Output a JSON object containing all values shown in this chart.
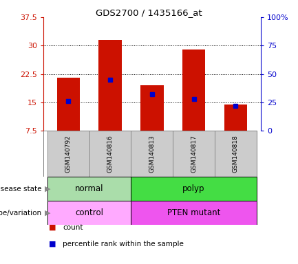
{
  "title": "GDS2700 / 1435166_at",
  "samples": [
    "GSM140792",
    "GSM140816",
    "GSM140813",
    "GSM140817",
    "GSM140818"
  ],
  "count_values": [
    21.5,
    31.5,
    19.5,
    29.0,
    14.5
  ],
  "percentile_values": [
    26,
    45,
    32,
    28,
    22
  ],
  "bar_color": "#cc1100",
  "percentile_color": "#0000cc",
  "ylim_left": [
    7.5,
    37.5
  ],
  "ylim_right": [
    0,
    100
  ],
  "yticks_left": [
    7.5,
    15.0,
    22.5,
    30.0,
    37.5
  ],
  "yticks_right": [
    0,
    25,
    50,
    75,
    100
  ],
  "ytick_labels_left": [
    "7.5",
    "15",
    "22.5",
    "30",
    "37.5"
  ],
  "ytick_labels_right": [
    "0",
    "25",
    "50",
    "75",
    "100%"
  ],
  "disease_state_groups": [
    {
      "label": "normal",
      "start": 0,
      "end": 2,
      "color": "#aaddaa"
    },
    {
      "label": "polyp",
      "start": 2,
      "end": 5,
      "color": "#44dd44"
    }
  ],
  "genotype_groups": [
    {
      "label": "control",
      "start": 0,
      "end": 2,
      "color": "#ffaaff"
    },
    {
      "label": "PTEN mutant",
      "start": 2,
      "end": 5,
      "color": "#ee55ee"
    }
  ],
  "row_labels": [
    "disease state",
    "genotype/variation"
  ],
  "legend_items": [
    {
      "label": "count",
      "color": "#cc1100"
    },
    {
      "label": "percentile rank within the sample",
      "color": "#0000cc"
    }
  ],
  "bar_width": 0.55,
  "background_color": "#ffffff",
  "plot_bg_color": "#ffffff",
  "tick_label_color_left": "#cc1100",
  "tick_label_color_right": "#0000cc",
  "grid_color": "#000000",
  "bar_bottom": 7.5,
  "sample_box_color": "#cccccc",
  "sample_box_edge": "#888888"
}
